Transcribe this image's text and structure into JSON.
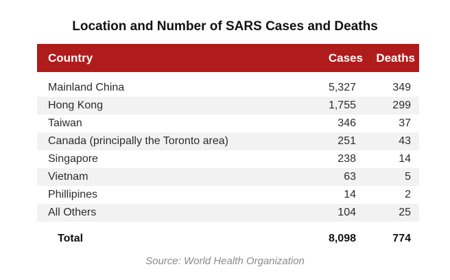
{
  "chart_data": {
    "type": "table",
    "title": "Location and Number of SARS Cases and Deaths",
    "columns": [
      "Country",
      "Cases",
      "Deaths"
    ],
    "rows": [
      {
        "country": "Mainland China",
        "cases": "5,327",
        "deaths": "349"
      },
      {
        "country": "Hong Kong",
        "cases": "1,755",
        "deaths": "299"
      },
      {
        "country": "Taiwan",
        "cases": "346",
        "deaths": "37"
      },
      {
        "country": "Canada (principally the Toronto area)",
        "cases": "251",
        "deaths": "43"
      },
      {
        "country": "Singapore",
        "cases": "238",
        "deaths": "14"
      },
      {
        "country": "Vietnam",
        "cases": "63",
        "deaths": "5"
      },
      {
        "country": "Phillipines",
        "cases": "14",
        "deaths": "2"
      },
      {
        "country": "All Others",
        "cases": "104",
        "deaths": "25"
      }
    ],
    "total": {
      "label": "Total",
      "cases": "8,098",
      "deaths": "774"
    },
    "source": "Source: World Health Organization",
    "colors": {
      "header_bg": "#b01c1c",
      "header_text": "#ffffff",
      "row_shade": "#f2f2f2"
    }
  }
}
